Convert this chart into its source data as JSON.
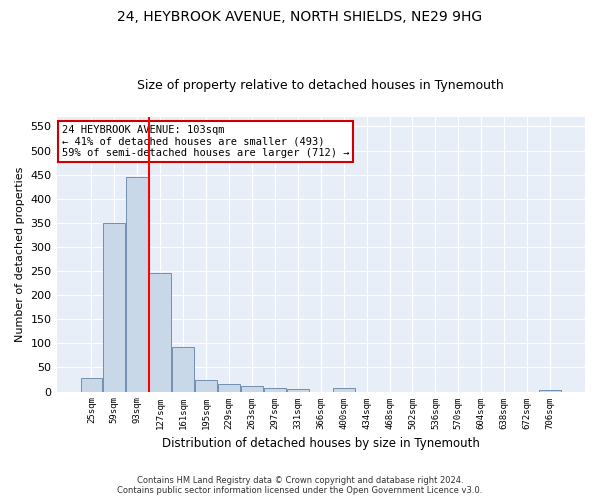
{
  "title1": "24, HEYBROOK AVENUE, NORTH SHIELDS, NE29 9HG",
  "title2": "Size of property relative to detached houses in Tynemouth",
  "xlabel": "Distribution of detached houses by size in Tynemouth",
  "ylabel": "Number of detached properties",
  "footer1": "Contains HM Land Registry data © Crown copyright and database right 2024.",
  "footer2": "Contains public sector information licensed under the Open Government Licence v3.0.",
  "annotation_line1": "24 HEYBROOK AVENUE: 103sqm",
  "annotation_line2": "← 41% of detached houses are smaller (493)",
  "annotation_line3": "59% of semi-detached houses are larger (712) →",
  "bar_labels": [
    "25sqm",
    "59sqm",
    "93sqm",
    "127sqm",
    "161sqm",
    "195sqm",
    "229sqm",
    "263sqm",
    "297sqm",
    "331sqm",
    "366sqm",
    "400sqm",
    "434sqm",
    "468sqm",
    "502sqm",
    "536sqm",
    "570sqm",
    "604sqm",
    "638sqm",
    "672sqm",
    "706sqm"
  ],
  "bar_values": [
    28,
    350,
    445,
    245,
    93,
    25,
    15,
    12,
    7,
    5,
    0,
    7,
    0,
    0,
    0,
    0,
    0,
    0,
    0,
    0,
    4
  ],
  "bar_color": "#c8d8e8",
  "bar_edge_color": "#7090b0",
  "red_line_x": 2.5,
  "ylim": [
    0,
    570
  ],
  "yticks": [
    0,
    50,
    100,
    150,
    200,
    250,
    300,
    350,
    400,
    450,
    500,
    550
  ],
  "bg_color": "#e8eef8",
  "grid_color": "#ffffff",
  "fig_bg_color": "#ffffff",
  "title1_fontsize": 10,
  "title2_fontsize": 9,
  "annotation_box_color": "#ffffff",
  "annotation_box_edge": "#cc0000"
}
